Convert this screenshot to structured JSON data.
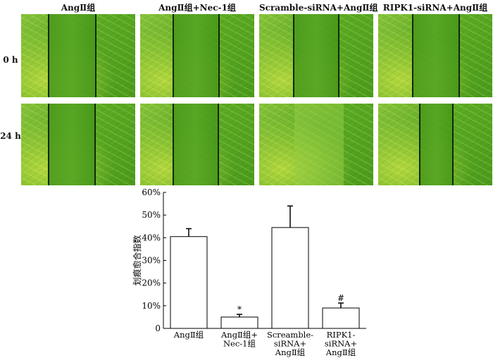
{
  "columns": [
    {
      "title": "AngⅡ组"
    },
    {
      "title": "AngⅡ组+Nec-1组"
    },
    {
      "title": "Scramble-siRNA+AngⅡ组"
    },
    {
      "title": "RIPK1-siRNA+AngⅡ组"
    }
  ],
  "rows": [
    {
      "label": "0 h"
    },
    {
      "label": "24 h"
    }
  ],
  "panel_color": "#5aaa22",
  "chart_data": {
    "type": "bar",
    "ylabel": "划痕愈合指数",
    "ylim": [
      0,
      60
    ],
    "yticks": [
      "0",
      "10%",
      "20%",
      "30%",
      "40%",
      "50%",
      "60%"
    ],
    "categories": [
      [
        "AngⅡ组"
      ],
      [
        "AngⅡ组+",
        "Nec-1组"
      ],
      [
        "Screamble-",
        "siRNA+",
        "AngⅡ组"
      ],
      [
        "RIPK1-",
        "siRNA+",
        "AngⅡ组"
      ]
    ],
    "values": [
      40.5,
      5,
      44.5,
      9
    ],
    "errors": [
      3.5,
      1.2,
      9.5,
      2.2
    ],
    "annotations": [
      "",
      "*",
      "",
      "#"
    ],
    "bar_fill": "#ffffff",
    "bar_stroke": "#000000"
  }
}
